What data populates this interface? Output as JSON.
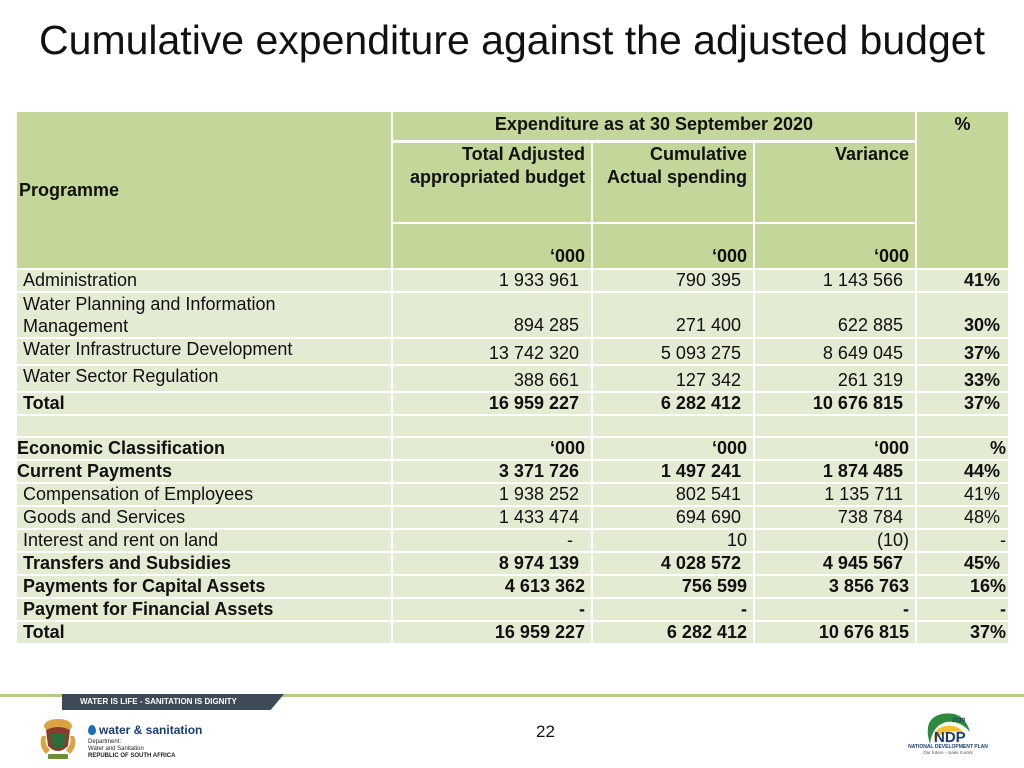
{
  "title": "Cumulative expenditure against the adjusted budget",
  "table": {
    "header": {
      "programme": "Programme",
      "expenditure_heading": "Expenditure as at 30 September 2020",
      "percent": "%",
      "col1": "Total Adjusted appropriated budget",
      "col2": "Cumulative Actual spending",
      "col3": "Variance",
      "unit1": "‘000",
      "unit2": "‘000",
      "unit3": "‘000"
    },
    "programmes": [
      {
        "name": "Administration",
        "budget": "1 933 961",
        "actual": "790 395",
        "variance": "1 143 566",
        "pct": "41%"
      },
      {
        "name": "Water Planning and Information Management",
        "budget": "894 285",
        "actual": "271 400",
        "variance": "622 885",
        "pct": "30%"
      },
      {
        "name": "Water Infrastructure Development",
        "budget": "13 742 320",
        "actual": "5 093 275",
        "variance": "8 649 045",
        "pct": "37%"
      },
      {
        "name": "Water Sector Regulation",
        "budget": "388 661",
        "actual": "127 342",
        "variance": "261 319",
        "pct": "33%"
      },
      {
        "name": "Total",
        "budget": "16 959 227",
        "actual": "6 282 412",
        "variance": "10 676 815",
        "pct": "37%"
      }
    ],
    "economic_header": {
      "name": "Economic Classification",
      "unit1": "‘000",
      "unit2": "‘000",
      "unit3": "‘000",
      "pct": "%"
    },
    "economic": [
      {
        "name": "Current Payments",
        "budget": "3 371 726",
        "actual": "1 497 241",
        "variance": "1 874 485",
        "pct": "44%"
      },
      {
        "name": "Compensation of Employees",
        "budget": "1 938 252",
        "actual": "802 541",
        "variance": "1 135 711",
        "pct": "41%"
      },
      {
        "name": "Goods and Services",
        "budget": "1 433 474",
        "actual": "694 690",
        "variance": "738 784",
        "pct": "48%"
      },
      {
        "name": "Interest and rent on land",
        "budget": "-",
        "actual": "10",
        "variance": "(10)",
        "pct": "-"
      },
      {
        "name": "Transfers and Subsidies",
        "budget": "8 974 139",
        "actual": "4 028 572",
        "variance": "4 945 567",
        "pct": "45%"
      },
      {
        "name": "Payments  for Capital Assets",
        "budget": "4 613 362",
        "actual": "756 599",
        "variance": "3 856 763",
        "pct": "16%"
      },
      {
        "name": "Payment for Financial  Assets",
        "budget": "-",
        "actual": "-",
        "variance": "-",
        "pct": "-"
      },
      {
        "name": "Total",
        "budget": "16 959 227",
        "actual": "6 282 412",
        "variance": "10 676 815",
        "pct": "37%"
      }
    ]
  },
  "footer": {
    "banner": "WATER IS LIFE - SANITATION IS DIGNITY",
    "department_logo": "water & sanitation",
    "department_line1": "Department:",
    "department_line2": "Water and Sanitation",
    "department_line3": "REPUBLIC OF SOUTH AFRICA",
    "page_number": "22",
    "ndp_year": "2030",
    "ndp_name": "NATIONAL DEVELOPMENT PLAN",
    "ndp_tagline": "Our future - make it work"
  },
  "colors": {
    "header_bg": "#c5d69b",
    "row_bg": "#e3ebd3",
    "accent_line": "#b4c98a",
    "banner_bg": "#3e4a55"
  }
}
